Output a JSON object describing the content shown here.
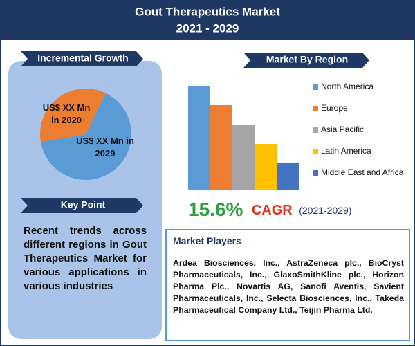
{
  "header": {
    "title_lines": [
      "Gout Therapeutics Market",
      "2021 - 2029"
    ]
  },
  "incremental_growth": {
    "heading": "Incremental Growth",
    "chart": {
      "type": "pie",
      "values": [
        35,
        65
      ],
      "value_labels": [
        "US$ XX Mn in 2020",
        "US$ XX Mn in 2029"
      ],
      "colors": [
        "#ed7d31",
        "#5b9bd5"
      ]
    }
  },
  "key_point": {
    "heading": "Key Point",
    "text": "Recent trends across different regions in Gout Therapeutics Market for various applications in various industries"
  },
  "region": {
    "heading": "Market By Region",
    "chart": {
      "type": "bar",
      "ylim": [
        0,
        160
      ],
      "series": [
        {
          "name": "North America",
          "color": "#5b9bd5",
          "values": [
            149
          ]
        },
        {
          "name": "Europe",
          "color": "#ed7d31",
          "values": [
            122
          ]
        },
        {
          "name": "Asia Pacific",
          "color": "#a5a5a5",
          "values": [
            94
          ]
        },
        {
          "name": "Latin America",
          "color": "#ffc000",
          "values": [
            66
          ]
        },
        {
          "name": "Middle East and Africa",
          "color": "#4472c4",
          "values": [
            39
          ]
        }
      ]
    }
  },
  "cagr": {
    "value": "15.6%",
    "label": "CAGR",
    "period": "(2021-2029)"
  },
  "market_players": {
    "heading": "Market Players",
    "text": "Ardea Biosciences, Inc., AstraZeneca plc., BioCryst Pharmaceuticals, Inc., GlaxoSmithKline plc., Horizon Pharma Plc., Novartis AG, Sanofi Aventis, Savient Pharmaceuticals, Inc., Selecta Biosciences, Inc., Takeda Pharmaceutical Company Ltd., Teijin Pharma Ltd."
  }
}
